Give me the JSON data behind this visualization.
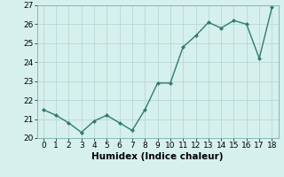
{
  "x": [
    0,
    1,
    2,
    3,
    4,
    5,
    6,
    7,
    8,
    9,
    10,
    11,
    12,
    13,
    14,
    15,
    16,
    17,
    18
  ],
  "y": [
    21.5,
    21.2,
    20.8,
    20.3,
    20.9,
    21.2,
    20.8,
    20.4,
    21.5,
    22.9,
    22.9,
    24.8,
    25.4,
    26.1,
    25.8,
    26.2,
    26.0,
    24.2,
    26.9
  ],
  "xlabel": "Humidex (Indice chaleur)",
  "ylim": [
    20,
    27
  ],
  "xlim": [
    -0.5,
    18.5
  ],
  "yticks": [
    20,
    21,
    22,
    23,
    24,
    25,
    26,
    27
  ],
  "xticks": [
    0,
    1,
    2,
    3,
    4,
    5,
    6,
    7,
    8,
    9,
    10,
    11,
    12,
    13,
    14,
    15,
    16,
    17,
    18
  ],
  "line_color": "#2e7d6e",
  "marker": "D",
  "marker_size": 2.0,
  "bg_color": "#d6f0ed",
  "grid_color": "#b8d8d4",
  "line_width": 1.0,
  "tick_fontsize": 6.5,
  "xlabel_fontsize": 7.5
}
